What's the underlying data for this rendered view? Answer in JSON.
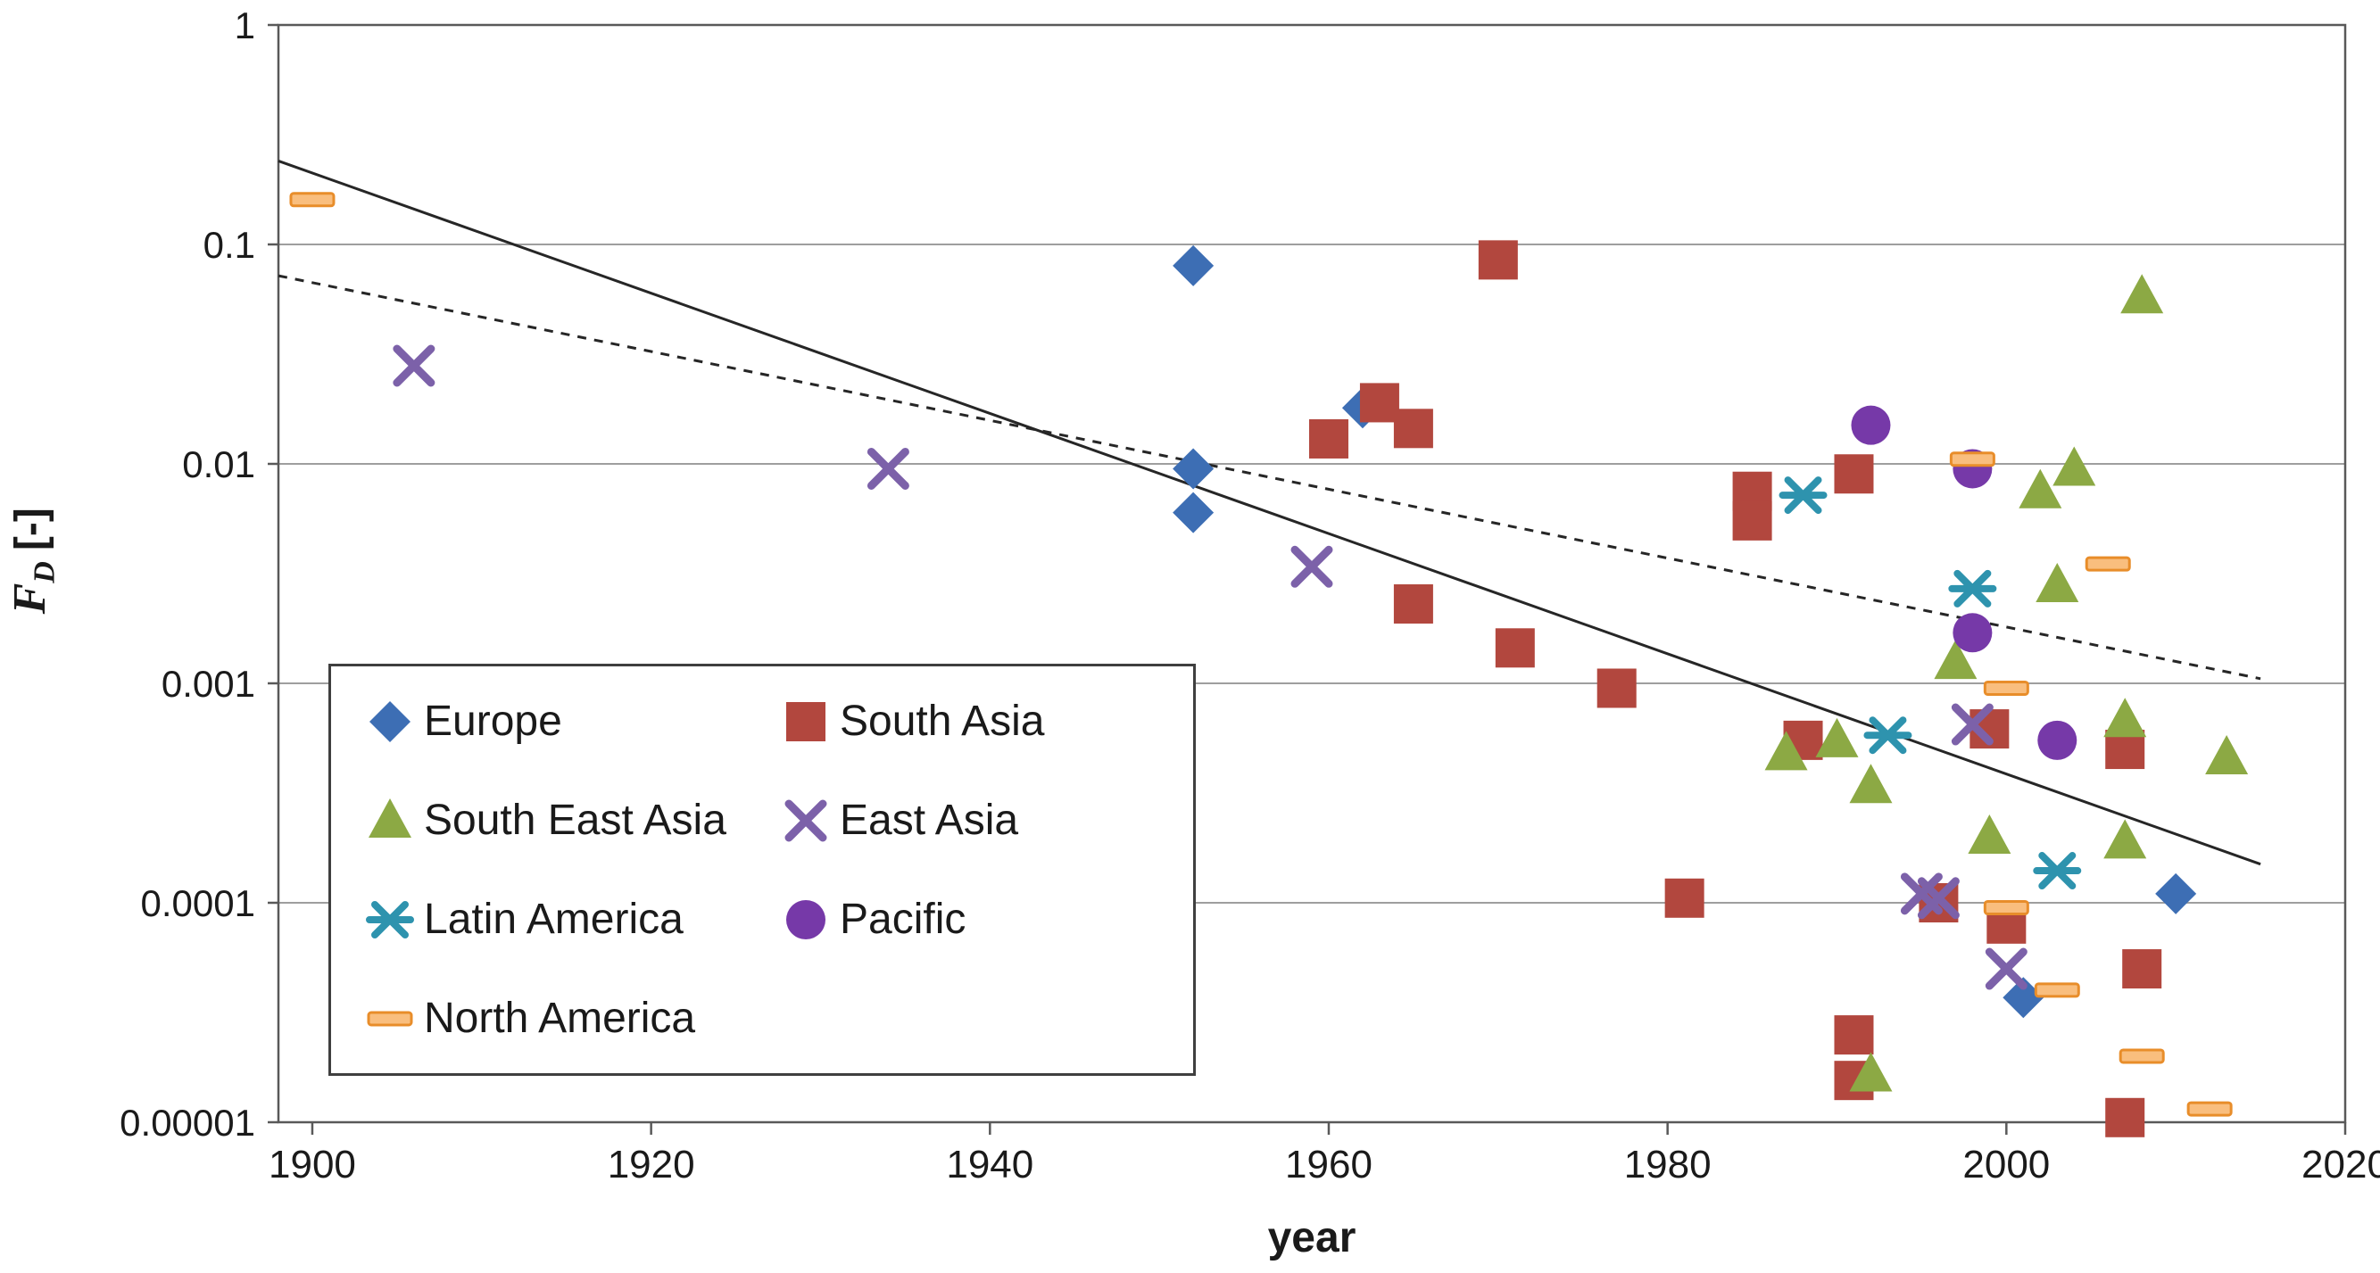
{
  "chart_data": {
    "type": "scatter",
    "title": "",
    "xlabel": "year",
    "ylabel": "F_D [-]",
    "ylabel_symbol": "F",
    "ylabel_subscript": "D",
    "ylabel_unit": "[-]",
    "y_scale": "log",
    "xlim": [
      1898,
      2020
    ],
    "ylim": [
      1e-05,
      1
    ],
    "ylim_log": [
      -5,
      0
    ],
    "x_ticks": [
      1900,
      1920,
      1940,
      1960,
      1980,
      2000,
      2020
    ],
    "y_ticks": [
      1,
      0.1,
      0.01,
      0.001,
      0.0001,
      1e-05
    ],
    "y_tick_labels": [
      "1",
      "0.1",
      "0.01",
      "0.001",
      "0.0001",
      "0.00001"
    ],
    "grid": "horizontal",
    "legend_position": "inside-bottom-left",
    "colors": {
      "gridline": "#9e9e9e",
      "plot_border": "#595959",
      "trendline": "#262626",
      "text": "#1a1a1a"
    },
    "series": [
      {
        "name": "Europe",
        "marker": "diamond",
        "color": "#3d6eb4",
        "points": [
          [
            1952,
            0.08
          ],
          [
            1952,
            0.0095
          ],
          [
            1952,
            0.006
          ],
          [
            1962,
            0.018
          ],
          [
            2001,
            3.7e-05
          ],
          [
            2010,
            0.00011
          ]
        ]
      },
      {
        "name": "South Asia",
        "marker": "square",
        "color": "#b2473e",
        "points": [
          [
            1960,
            0.013
          ],
          [
            1963,
            0.019
          ],
          [
            1965,
            0.0145
          ],
          [
            1965,
            0.0023
          ],
          [
            1970,
            0.085
          ],
          [
            1971,
            0.00145
          ],
          [
            1977,
            0.00095
          ],
          [
            1981,
            0.000105
          ],
          [
            1985,
            0.0075
          ],
          [
            1985,
            0.0055
          ],
          [
            1988,
            0.00055
          ],
          [
            1991,
            0.009
          ],
          [
            1991,
            2.5e-05
          ],
          [
            1991,
            1.55e-05
          ],
          [
            1996,
            0.0001
          ],
          [
            1999,
            0.00062
          ],
          [
            2000,
            8e-05
          ],
          [
            2007,
            0.0005
          ],
          [
            2008,
            5e-05
          ],
          [
            2007,
            1.05e-05
          ]
        ]
      },
      {
        "name": "South East Asia",
        "marker": "triangle",
        "color": "#8ca944",
        "points": [
          [
            1987,
            0.00048
          ],
          [
            1990,
            0.00055
          ],
          [
            1992,
            0.00034
          ],
          [
            1992,
            1.65e-05
          ],
          [
            1997,
            0.00125
          ],
          [
            1999,
            0.0002
          ],
          [
            2002,
            0.0075
          ],
          [
            2003,
            0.0028
          ],
          [
            2004,
            0.0095
          ],
          [
            2007,
            0.00068
          ],
          [
            2007,
            0.00019
          ],
          [
            2008,
            0.058
          ],
          [
            2013,
            0.00046
          ]
        ]
      },
      {
        "name": "East Asia",
        "marker": "x",
        "color": "#7c61a9",
        "points": [
          [
            1906,
            0.028
          ],
          [
            1934,
            0.0095
          ],
          [
            1959,
            0.0034
          ],
          [
            1995,
            0.00011
          ],
          [
            1996,
            0.000105
          ],
          [
            1998,
            0.00065
          ],
          [
            2000,
            5e-05
          ]
        ]
      },
      {
        "name": "Latin America",
        "marker": "asterisk",
        "color": "#2e93ae",
        "points": [
          [
            1988,
            0.0072
          ],
          [
            1993,
            0.00058
          ],
          [
            1998,
            0.0027
          ],
          [
            2003,
            0.00014
          ]
        ]
      },
      {
        "name": "Pacific",
        "marker": "circle",
        "color": "#7639a8",
        "points": [
          [
            1992,
            0.015
          ],
          [
            1998,
            0.0095
          ],
          [
            1998,
            0.0017
          ],
          [
            2003,
            0.00055
          ]
        ]
      },
      {
        "name": "North America",
        "marker": "dash",
        "color": "#f9be7e",
        "stroke": "#e88d2a",
        "points": [
          [
            1900,
            0.16
          ],
          [
            1998,
            0.0105
          ],
          [
            2006,
            0.0035
          ],
          [
            2000,
            0.00095
          ],
          [
            2000,
            9.5e-05
          ],
          [
            2003,
            4e-05
          ],
          [
            2008,
            2e-05
          ],
          [
            2012,
            1.15e-05
          ]
        ]
      }
    ],
    "legend_column_order": [
      0,
      2,
      4,
      6,
      1,
      3,
      5
    ],
    "trendlines": [
      {
        "style": "solid",
        "start": [
          1898,
          0.24
        ],
        "end": [
          2015,
          0.00015
        ]
      },
      {
        "style": "dashed",
        "start": [
          1898,
          0.072
        ],
        "end": [
          2015,
          0.00105
        ]
      }
    ]
  }
}
